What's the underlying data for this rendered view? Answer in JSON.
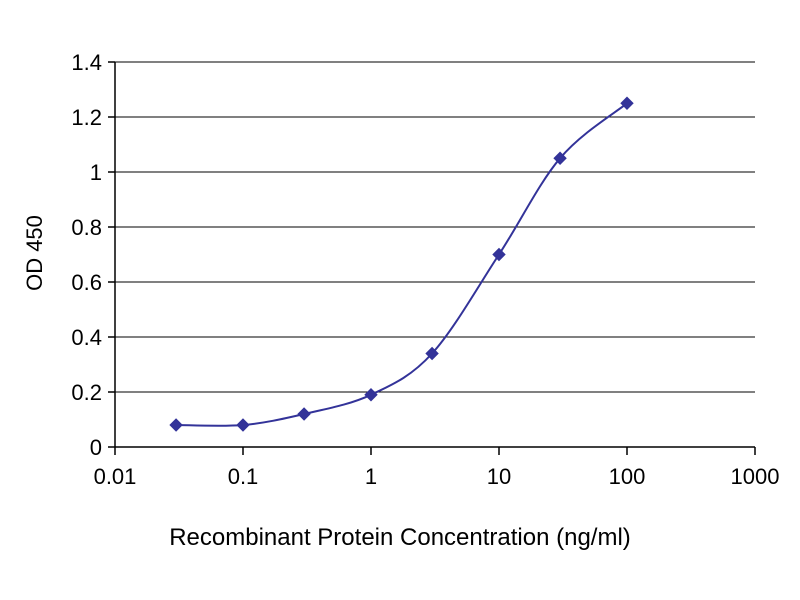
{
  "chart_data": {
    "type": "line",
    "title": "",
    "xlabel": "Recombinant Protein Concentration (ng/ml)",
    "ylabel": "OD 450",
    "x_scale": "log",
    "xlim": [
      0.01,
      1000
    ],
    "ylim": [
      0,
      1.4
    ],
    "x_ticks": [
      0.01,
      0.1,
      1,
      10,
      100,
      1000
    ],
    "x_tick_labels": [
      "0.01",
      "0.1",
      "1",
      "10",
      "100",
      "1000"
    ],
    "y_ticks": [
      0,
      0.2,
      0.4,
      0.6,
      0.8,
      1,
      1.2,
      1.4
    ],
    "y_tick_labels": [
      "0",
      "0.2",
      "0.4",
      "0.6",
      "0.8",
      "1",
      "1.2",
      "1.4"
    ],
    "grid": "horizontal",
    "legend": "none",
    "series": [
      {
        "name": "OD 450",
        "x": [
          0.03,
          0.1,
          0.3,
          1,
          3,
          10,
          30,
          100
        ],
        "y": [
          0.08,
          0.08,
          0.12,
          0.19,
          0.34,
          0.7,
          1.05,
          1.25
        ],
        "color": "#333399",
        "marker": "diamond"
      }
    ],
    "axis_color": "#000000",
    "grid_color": "#000000",
    "tick_label_color": "#000000",
    "background": "#ffffff"
  }
}
